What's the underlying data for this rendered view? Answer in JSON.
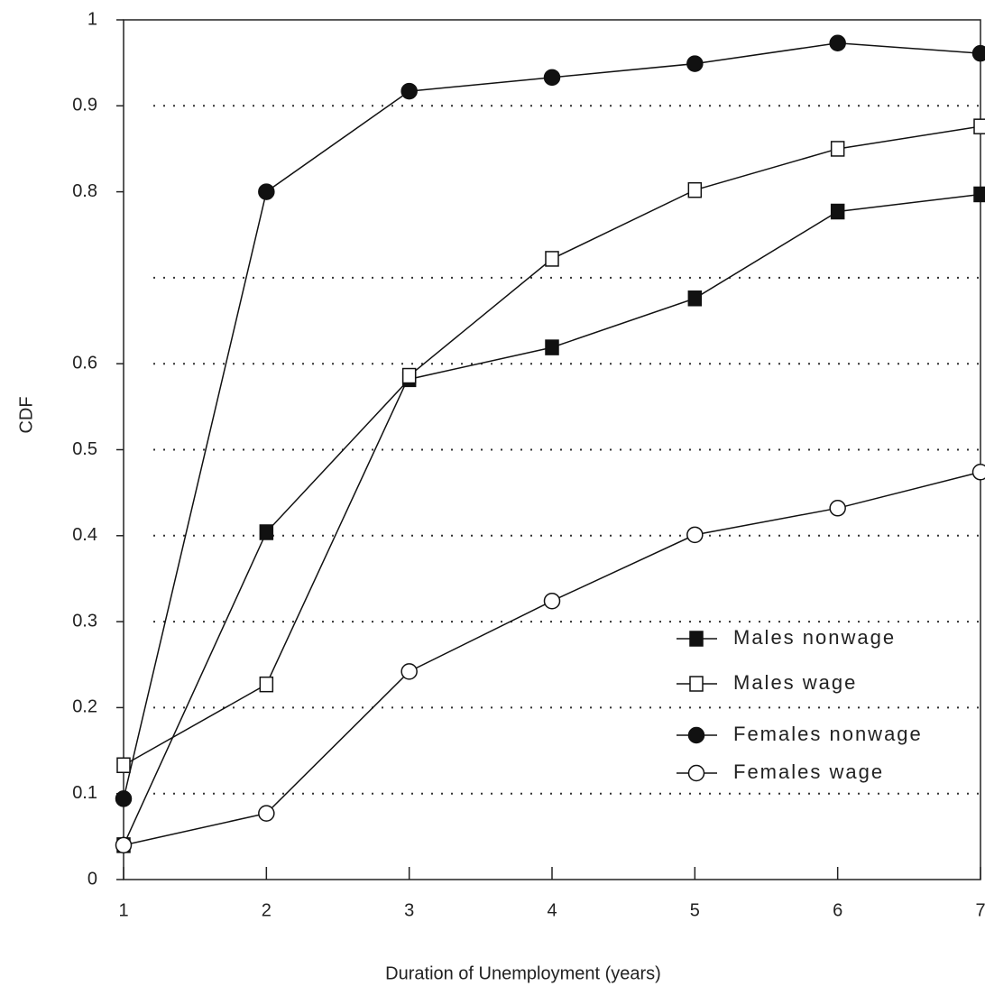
{
  "chart_data": {
    "type": "line",
    "xlabel": "Duration of Unemployment (years)",
    "ylabel": "CDF",
    "x": [
      1,
      2,
      3,
      4,
      5,
      6,
      7
    ],
    "xlim": [
      1,
      7
    ],
    "xticks": [
      1,
      2,
      3,
      4,
      5,
      6,
      7
    ],
    "ylim": [
      0,
      1
    ],
    "yticks": [
      0,
      0.1,
      0.2,
      0.3,
      0.4,
      0.5,
      0.6,
      0.8,
      0.9,
      1
    ],
    "ygrid": [
      0.1,
      0.2,
      0.3,
      0.4,
      0.5,
      0.6,
      0.7,
      0.9
    ],
    "legend": "lower right",
    "series": [
      {
        "name": "Males nonwage",
        "color": "#111111",
        "marker": "square",
        "filled": true,
        "values": [
          0.04,
          0.404,
          0.582,
          0.619,
          0.676,
          0.777,
          0.797
        ]
      },
      {
        "name": "Males wage",
        "color": "#111111",
        "marker": "square",
        "filled": false,
        "values": [
          0.133,
          0.227,
          0.586,
          0.722,
          0.802,
          0.85,
          0.876
        ]
      },
      {
        "name": "Females nonwage",
        "color": "#111111",
        "marker": "circle",
        "filled": true,
        "values": [
          0.094,
          0.8,
          0.917,
          0.933,
          0.949,
          0.973,
          0.961
        ]
      },
      {
        "name": "Females wage",
        "color": "#111111",
        "marker": "circle",
        "filled": false,
        "values": [
          0.04,
          0.077,
          0.242,
          0.324,
          0.401,
          0.432,
          0.474
        ]
      }
    ]
  }
}
